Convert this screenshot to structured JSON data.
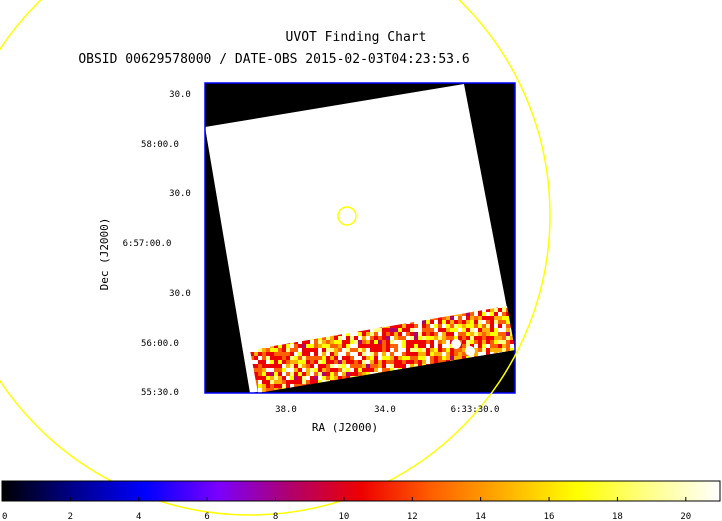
{
  "chart_data": {
    "type": "heatmap",
    "title": "UVOT Finding Chart",
    "subtitle": "OBSID 00629578000 / DATE-OBS 2015-02-03T04:23:53.6",
    "xlabel": "RA (J2000)",
    "ylabel": "Dec (J2000)",
    "x_ticks": [
      "38.0",
      "34.0",
      "6:33:30.0"
    ],
    "y_ticks": [
      "30.0",
      "58:00.0",
      "30.0",
      "6:57:00.0",
      "30.0",
      "56:00.0",
      "55:30.0"
    ],
    "colorbar": {
      "ticks": [
        "0",
        "2",
        "4",
        "6",
        "8",
        "10",
        "12",
        "14",
        "16",
        "18",
        "20"
      ],
      "min": 0,
      "max": 21,
      "colormap": [
        "#000000",
        "#00008c",
        "#0000ff",
        "#7a00ff",
        "#b0006e",
        "#ee0000",
        "#ff6000",
        "#ffb000",
        "#ffff00",
        "#ffff88",
        "#ffffff"
      ]
    },
    "overlays": [
      {
        "shape": "circle",
        "color": "#ffff00",
        "role": "source position"
      },
      {
        "shape": "circle",
        "color": "#ffff00",
        "role": "error circle"
      }
    ],
    "image": {
      "saturated_region_value": 21,
      "background_value": 0,
      "frame_color": "#0000ff"
    }
  }
}
